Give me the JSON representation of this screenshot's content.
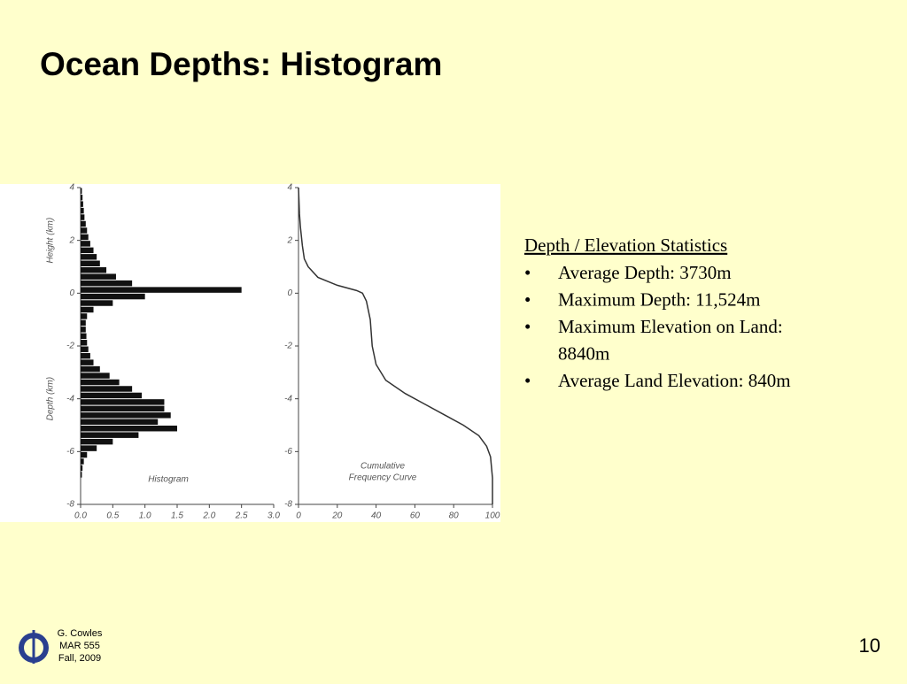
{
  "slide": {
    "title": "Ocean Depths: Histogram",
    "stats": {
      "heading": "Depth / Elevation Statistics",
      "bullets": [
        "Average Depth: 3730m",
        "Maximum Depth: 11,524m",
        "Maximum Elevation on Land:",
        "8840m",
        "Average Land Elevation: 840m"
      ]
    },
    "footer": [
      "G. Cowles",
      "MAR 555",
      "Fall, 2009"
    ],
    "page_number": "10"
  },
  "chart_data": [
    {
      "type": "histogram",
      "orientation": "horizontal",
      "annotation": "Histogram",
      "y_labels": [
        "Height (km)",
        "Depth (km)"
      ],
      "bins": [
        -7,
        -6.75,
        -6.5,
        -6.25,
        -6,
        -5.75,
        -5.5,
        -5.25,
        -5,
        -4.75,
        -4.5,
        -4.25,
        -4,
        -3.75,
        -3.5,
        -3.25,
        -3,
        -2.75,
        -2.5,
        -2.25,
        -2,
        -1.75,
        -1.5,
        -1.25,
        -1,
        -0.75,
        -0.5,
        -0.25,
        0,
        0.25,
        0.5,
        0.75,
        1,
        1.25,
        1.5,
        1.75,
        2,
        2.25,
        2.5,
        2.75,
        3,
        3.25,
        3.5,
        3.75,
        4
      ],
      "values": [
        0.02,
        0.03,
        0.05,
        0.1,
        0.25,
        0.5,
        0.9,
        1.5,
        1.2,
        1.4,
        1.3,
        1.3,
        0.95,
        0.8,
        0.6,
        0.45,
        0.3,
        0.2,
        0.15,
        0.12,
        0.1,
        0.09,
        0.08,
        0.08,
        0.1,
        0.2,
        0.5,
        1.0,
        2.5,
        0.8,
        0.55,
        0.4,
        0.3,
        0.25,
        0.2,
        0.15,
        0.12,
        0.1,
        0.08,
        0.06,
        0.05,
        0.04,
        0.03,
        0.02
      ],
      "color": "#111111",
      "xlim": [
        0,
        3
      ],
      "xticks": [
        {
          "value": 0,
          "label": "0.0"
        },
        0.5,
        {
          "value": 1,
          "label": "1.0"
        },
        1.5,
        {
          "value": 2,
          "label": "2.0"
        },
        2.5,
        {
          "value": 3,
          "label": "3.0"
        }
      ],
      "ylim": [
        -8,
        4
      ],
      "yticks": [
        4,
        2,
        0,
        -2,
        -4,
        -6,
        -8
      ]
    },
    {
      "type": "line",
      "annotation": [
        "Cumulative",
        "Frequency Curve"
      ],
      "x": [
        0,
        0.5,
        1,
        2,
        3,
        5,
        10,
        20,
        30,
        33,
        35,
        37,
        38,
        40,
        45,
        55,
        65,
        75,
        85,
        93,
        97,
        99,
        100,
        100
      ],
      "values": [
        4,
        3,
        2.5,
        1.8,
        1.3,
        1,
        0.6,
        0.3,
        0.1,
        0,
        -0.3,
        -1,
        -2,
        -2.7,
        -3.3,
        -3.8,
        -4.2,
        -4.6,
        -5,
        -5.4,
        -5.8,
        -6.2,
        -7,
        -8
      ],
      "color": "#333333",
      "xlim": [
        0,
        100
      ],
      "xticks": [
        0,
        20,
        40,
        60,
        80,
        100
      ],
      "ylim": [
        -8,
        4
      ],
      "yticks": [
        4,
        2,
        0,
        -2,
        -4,
        -6,
        -8
      ]
    }
  ]
}
